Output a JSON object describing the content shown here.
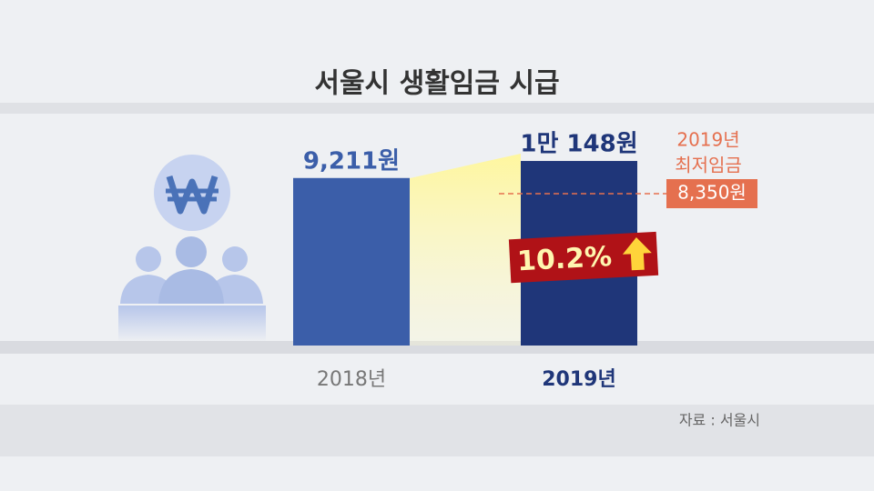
{
  "chart_data": {
    "type": "bar",
    "title": "서울시 생활임금 시급",
    "categories": [
      "2018년",
      "2019년"
    ],
    "values": [
      9211,
      10148
    ],
    "value_labels": [
      "9,211원",
      "1만 148원"
    ],
    "colors": [
      "#3b5ea9",
      "#1f3679"
    ],
    "ylim": [
      0,
      10500
    ],
    "reference": {
      "lines": [
        "2019년",
        "최저임금"
      ],
      "value": 8350,
      "label": "8,350원",
      "color": "#e5704f"
    },
    "growth_label": "10.2%",
    "source": "자료 : 서울시"
  }
}
